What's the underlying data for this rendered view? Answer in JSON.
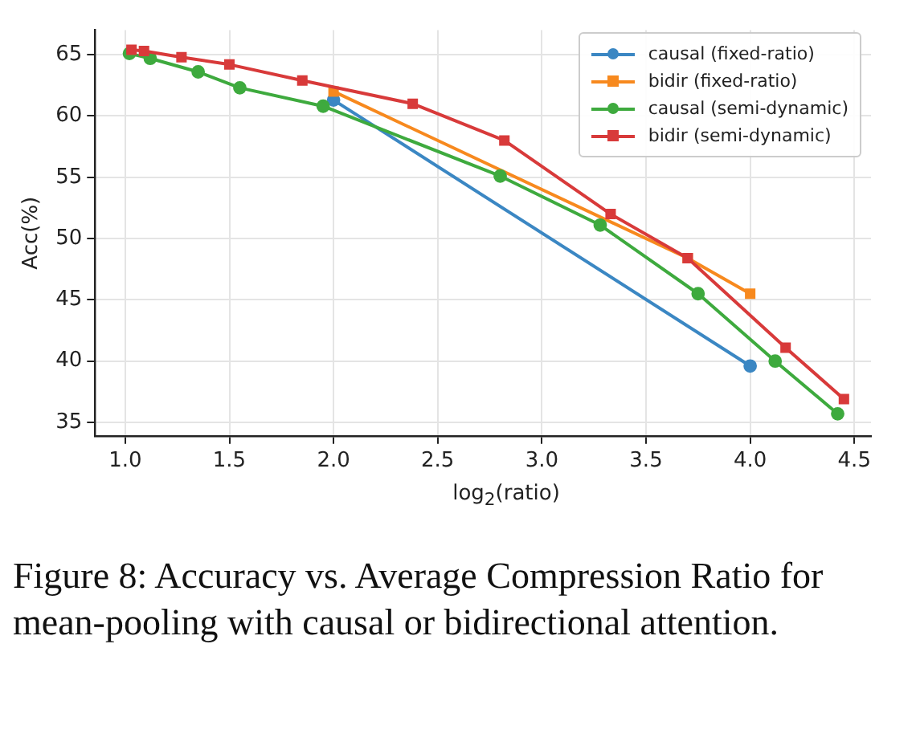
{
  "chart_data": {
    "type": "line",
    "xlabel": "log$_{2}$(ratio)",
    "ylabel": "Acc(%)",
    "xlim": [
      0.855,
      4.58
    ],
    "ylim": [
      33.9,
      67
    ],
    "xticks": [
      {
        "value": 1,
        "label": "1.0"
      },
      1.5,
      {
        "value": 2,
        "label": "2.0"
      },
      2.5,
      {
        "value": 3,
        "label": "3.0"
      },
      3.5,
      {
        "value": 4,
        "label": "4.0"
      },
      4.5
    ],
    "yticks": [
      35,
      40,
      45,
      50,
      55,
      60,
      65
    ],
    "grid": true,
    "legend": "top right",
    "series": [
      {
        "name": "causal (fixed-ratio)",
        "color": "#3b87c3",
        "marker": "circle",
        "x": [
          2.0,
          4.0
        ],
        "values": [
          61.3,
          39.6
        ]
      },
      {
        "name": "bidir (fixed-ratio)",
        "color": "#f7891e",
        "marker": "square",
        "x": [
          2.0,
          3.7,
          4.0
        ],
        "values": [
          62.0,
          48.4,
          45.5
        ]
      },
      {
        "name": "causal (semi-dynamic)",
        "color": "#3eaa3e",
        "marker": "circle",
        "x": [
          1.02,
          1.12,
          1.35,
          1.55,
          1.95,
          2.8,
          3.28,
          3.75,
          4.12,
          4.42
        ],
        "values": [
          65.1,
          64.7,
          63.6,
          62.3,
          60.8,
          55.1,
          51.1,
          45.5,
          40.0,
          35.7
        ]
      },
      {
        "name": "bidir (semi-dynamic)",
        "color": "#d83a3a",
        "marker": "square",
        "x": [
          1.03,
          1.09,
          1.27,
          1.5,
          1.85,
          2.38,
          2.82,
          3.33,
          3.7,
          4.17,
          4.45
        ],
        "values": [
          65.4,
          65.3,
          64.8,
          64.2,
          62.9,
          61.0,
          58.0,
          52.0,
          48.4,
          41.1,
          36.9
        ]
      }
    ],
    "annotations": [
      "Figure 8: Accuracy vs. Average Compression Ratio for mean-pooling with causal or bidirectional attention."
    ]
  }
}
